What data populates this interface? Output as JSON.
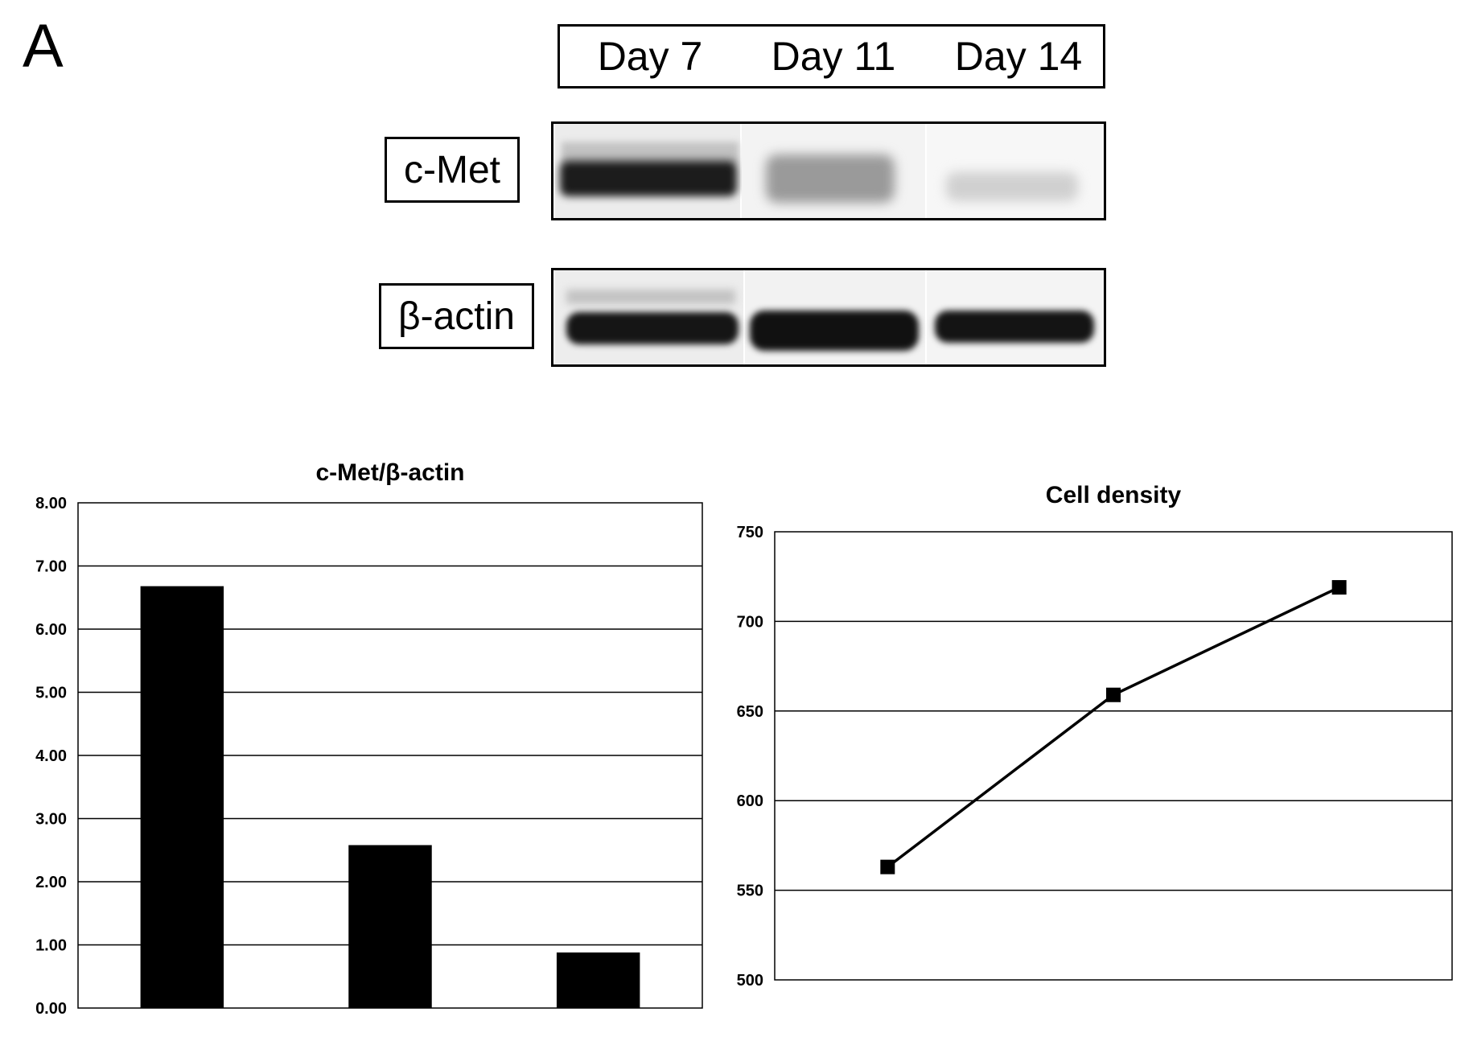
{
  "figure": {
    "panel_letter": "A",
    "blot": {
      "lanes": [
        "Day 7",
        "Day 11",
        "Day 14"
      ],
      "rows": [
        {
          "label": "c-Met",
          "intensities": [
            0.85,
            0.35,
            0.12
          ]
        },
        {
          "label": "β-actin",
          "intensities": [
            0.9,
            0.92,
            0.9
          ]
        }
      ]
    }
  },
  "chart_data": [
    {
      "type": "bar",
      "title": "c-Met/β-actin",
      "xlabel": "",
      "ylabel": "",
      "categories": [
        "",
        "",
        ""
      ],
      "values": [
        6.68,
        2.58,
        0.88
      ],
      "ylim": [
        0,
        8
      ],
      "yticks": [
        "0.00",
        "1.00",
        "2.00",
        "3.00",
        "4.00",
        "5.00",
        "6.00",
        "7.00",
        "8.00"
      ],
      "grid": true,
      "legend": "none",
      "color": "#000000"
    },
    {
      "type": "line",
      "title": "Cell density",
      "xlabel": "",
      "ylabel": "",
      "categories": [
        "",
        "",
        ""
      ],
      "values": [
        563,
        659,
        719
      ],
      "ylim": [
        500,
        750
      ],
      "yticks": [
        "500",
        "550",
        "600",
        "650",
        "700",
        "750"
      ],
      "grid": true,
      "legend": "none",
      "marker": "square",
      "color": "#000000"
    }
  ]
}
